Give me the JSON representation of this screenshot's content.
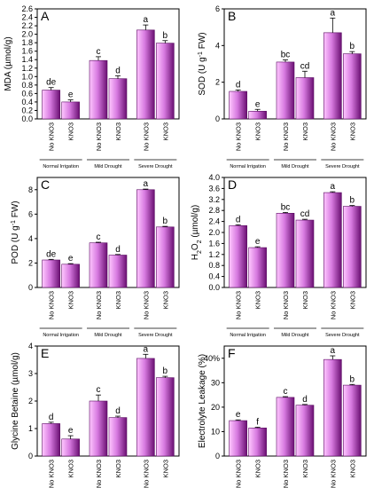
{
  "figure": {
    "group_labels": [
      "Normal Irrigation",
      "Mild Drought",
      "Severe Drought"
    ],
    "bar_labels": [
      "No KNO3",
      "KNO3"
    ]
  },
  "chart_data": [
    {
      "panel": "A",
      "type": "bar",
      "ylabel": "MDA (µmol/g)",
      "ylim": [
        0,
        2.6
      ],
      "yticks": [
        "0.0",
        "0.2",
        "0.4",
        "0.6",
        "0.8",
        "1.0",
        "1.2",
        "1.4",
        "1.6",
        "1.8",
        "2.0",
        "2.2",
        "2.4",
        "2.6"
      ],
      "categories": [
        "No KNO3",
        "KNO3",
        "No KNO3",
        "KNO3",
        "No KNO3",
        "KNO3"
      ],
      "groups": [
        "Normal Irrigation",
        "Mild Drought",
        "Severe Drought"
      ],
      "values": [
        0.68,
        0.4,
        1.38,
        0.95,
        2.1,
        1.79
      ],
      "errors": [
        0.06,
        0.05,
        0.09,
        0.07,
        0.12,
        0.06
      ],
      "letters": [
        "de",
        "e",
        "c",
        "d",
        "a",
        "b"
      ]
    },
    {
      "panel": "B",
      "type": "bar",
      "ylabel": "SOD (U g-1 FW)",
      "ylabel_parts": [
        "SOD (U g",
        "-1",
        " FW)"
      ],
      "ylim": [
        0,
        6
      ],
      "yticks": [
        "0",
        "2",
        "4",
        "6"
      ],
      "categories": [
        "No KNO3",
        "KNO3",
        "No KNO3",
        "KNO3",
        "No KNO3",
        "KNO3"
      ],
      "groups": [
        "Normal Irrigation",
        "Mild Drought",
        "Severe Drought"
      ],
      "values": [
        1.5,
        0.42,
        3.1,
        2.25,
        4.7,
        3.55
      ],
      "errors": [
        0.08,
        0.1,
        0.12,
        0.35,
        0.8,
        0.12
      ],
      "letters": [
        "d",
        "e",
        "bc",
        "cd",
        "a",
        "b"
      ]
    },
    {
      "panel": "C",
      "type": "bar",
      "ylabel": "POD (U g-1 FW)",
      "ylabel_parts": [
        "POD (U g",
        "-1",
        " FW)"
      ],
      "ylim": [
        0,
        9
      ],
      "yticks": [
        "0",
        "2",
        "4",
        "6",
        "8"
      ],
      "categories": [
        "No KNO3",
        "KNO3",
        "No KNO3",
        "KNO3",
        "No KNO3",
        "KNO3"
      ],
      "groups": [
        "Normal Irrigation",
        "Mild Drought",
        "Severe Drought"
      ],
      "values": [
        2.25,
        1.9,
        3.65,
        2.65,
        8.0,
        4.95
      ],
      "errors": [
        0.05,
        0.05,
        0.05,
        0.05,
        0.05,
        0.05
      ],
      "letters": [
        "de",
        "e",
        "c",
        "d",
        "a",
        "b"
      ]
    },
    {
      "panel": "D",
      "type": "bar",
      "ylabel": "H2O2 (µmol/g)",
      "ylabel_parts": [
        "H",
        "2",
        "O",
        "2",
        " (µmol/g)"
      ],
      "ylim": [
        0,
        4.0
      ],
      "yticks": [
        "0.0",
        "0.4",
        "0.8",
        "1.2",
        "1.6",
        "2.0",
        "2.4",
        "2.8",
        "3.2",
        "3.6",
        "4.0"
      ],
      "categories": [
        "No KNO3",
        "KNO3",
        "No KNO3",
        "KNO3",
        "No KNO3",
        "KNO3"
      ],
      "groups": [
        "Normal Irrigation",
        "Mild Drought",
        "Severe Drought"
      ],
      "values": [
        2.25,
        1.45,
        2.7,
        2.45,
        3.45,
        2.95
      ],
      "errors": [
        0.03,
        0.03,
        0.03,
        0.03,
        0.03,
        0.03
      ],
      "letters": [
        "d",
        "e",
        "bc",
        "cd",
        "a",
        "b"
      ]
    },
    {
      "panel": "E",
      "type": "bar",
      "ylabel": "Glycine Betaine (µmol/g)",
      "ylim": [
        0,
        4
      ],
      "yticks": [
        "0",
        "1",
        "2",
        "3",
        "4"
      ],
      "categories": [
        "No KNO3",
        "KNO3",
        "No KNO3",
        "KNO3",
        "No KNO3",
        "KNO3"
      ],
      "groups": [
        "Normal Irrigation",
        "Mild Drought",
        "Severe Drought"
      ],
      "values": [
        1.18,
        0.62,
        2.0,
        1.4,
        3.55,
        2.85
      ],
      "errors": [
        0.05,
        0.12,
        0.22,
        0.05,
        0.15,
        0.05
      ],
      "letters": [
        "d",
        "e",
        "c",
        "d",
        "a",
        "b"
      ]
    },
    {
      "panel": "F",
      "type": "bar",
      "ylabel": "Electrolyte Leakage (%)",
      "ylim": [
        0,
        45
      ],
      "yticks": [
        "0",
        "10",
        "20",
        "30",
        "40%"
      ],
      "categories": [
        "No KNO3",
        "KNO3",
        "No KNO3",
        "KNO3",
        "No KNO3",
        "KNO3"
      ],
      "groups": [
        "Normal Irrigation",
        "Mild Drought",
        "Severe Drought"
      ],
      "values": [
        14.5,
        11.5,
        24.0,
        20.8,
        39.5,
        29.0
      ],
      "errors": [
        0.3,
        0.3,
        0.3,
        0.3,
        1.5,
        0.3
      ],
      "letters": [
        "e",
        "f",
        "c",
        "d",
        "a",
        "b"
      ]
    }
  ]
}
